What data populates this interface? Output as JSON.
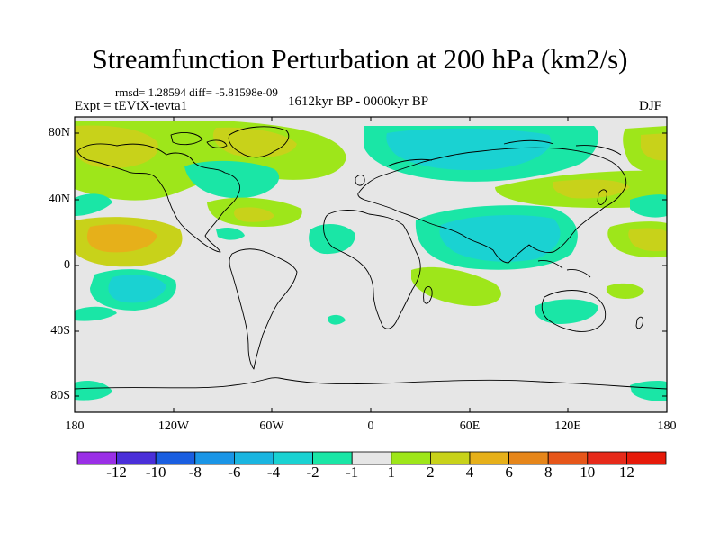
{
  "title": "Streamfunction Perturbation at 200 hPa (km2/s)",
  "stats": "rmsd= 1.28594 diff= -5.81598e-09",
  "experiment": "Expt = tEVtX-tevta1",
  "period": "1612kyr BP - 0000kyr BP",
  "season": "DJF",
  "lat_labels": [
    "80N",
    "40N",
    "0",
    "40S",
    "80S"
  ],
  "lon_labels": [
    "180",
    "120W",
    "60W",
    "0",
    "60E",
    "120E",
    "180"
  ],
  "colorbar": {
    "labels": [
      "-12",
      "-10",
      "-8",
      "-6",
      "-4",
      "-2",
      "-1",
      "1",
      "2",
      "4",
      "6",
      "8",
      "10",
      "12"
    ],
    "colors": [
      "#9a2fe6",
      "#4a2fd9",
      "#1a5ee0",
      "#1a95e6",
      "#1ab5e0",
      "#1ad2d2",
      "#1ae6a6",
      "#e6e6e6",
      "#9ee61a",
      "#c8d21a",
      "#e6b01a",
      "#e6861a",
      "#e6561a",
      "#e62a1a",
      "#e61a0a"
    ]
  },
  "colors": {
    "neutral": "#e6e6e6",
    "coast": "#000000"
  }
}
